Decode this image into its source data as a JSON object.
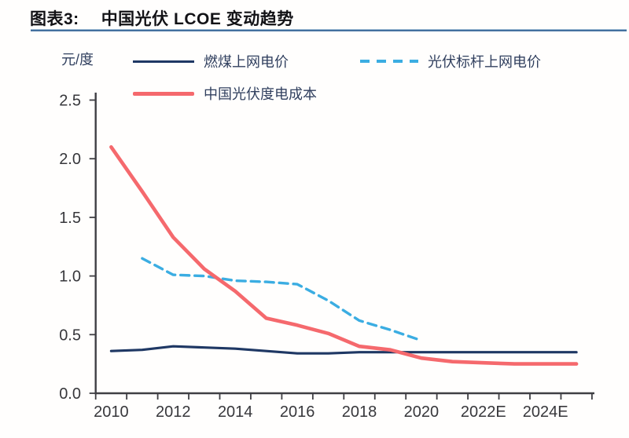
{
  "header": {
    "title_label": "图表3:",
    "title_text": "中国光伏 LCOE 变动趋势"
  },
  "unit_label": "元/度",
  "legend": [
    {
      "label": "燃煤上网电价",
      "color": "#1f3864",
      "style": "solid"
    },
    {
      "label": "光伏标杆上网电价",
      "color": "#3bade2",
      "style": "dashed"
    },
    {
      "label": "中国光伏度电成本",
      "color": "#f5696d",
      "style": "solid"
    }
  ],
  "chart_data": {
    "type": "line",
    "title": "中国光伏 LCOE 变动趋势",
    "xlabel": "",
    "ylabel": "元/度",
    "ylim": [
      0.0,
      2.5
    ],
    "yticks": [
      "0.0",
      "0.5",
      "1.0",
      "1.5",
      "2.0",
      "2.5"
    ],
    "x_years": [
      2010,
      2011,
      2012,
      2013,
      2014,
      2015,
      2016,
      2017,
      2018,
      2019,
      2020,
      2021,
      2022,
      2023,
      2024,
      2025
    ],
    "xtick_labels": [
      "2010",
      "2012",
      "2014",
      "2016",
      "2018",
      "2020",
      "2022E",
      "2024E"
    ],
    "grid": false,
    "legend_position": "top",
    "series": [
      {
        "name": "燃煤上网电价",
        "color": "#1f3864",
        "line_style": "solid",
        "start_year": 2010,
        "values": [
          0.36,
          0.37,
          0.4,
          0.39,
          0.38,
          0.36,
          0.34,
          0.34,
          0.35,
          0.35,
          0.35,
          0.35,
          0.35,
          0.35,
          0.35,
          0.35
        ]
      },
      {
        "name": "光伏标杆上网电价",
        "color": "#3bade2",
        "line_style": "dashed",
        "start_year": 2011,
        "values": [
          1.15,
          1.01,
          1.0,
          0.96,
          0.95,
          0.93,
          0.79,
          0.62,
          0.54,
          0.45
        ]
      },
      {
        "name": "中国光伏度电成本",
        "color": "#f5696d",
        "line_style": "solid",
        "start_year": 2010,
        "values": [
          2.1,
          1.72,
          1.33,
          1.06,
          0.87,
          0.64,
          0.58,
          0.51,
          0.4,
          0.37,
          0.3,
          0.27,
          0.26,
          0.25,
          0.25,
          0.25
        ]
      }
    ]
  }
}
